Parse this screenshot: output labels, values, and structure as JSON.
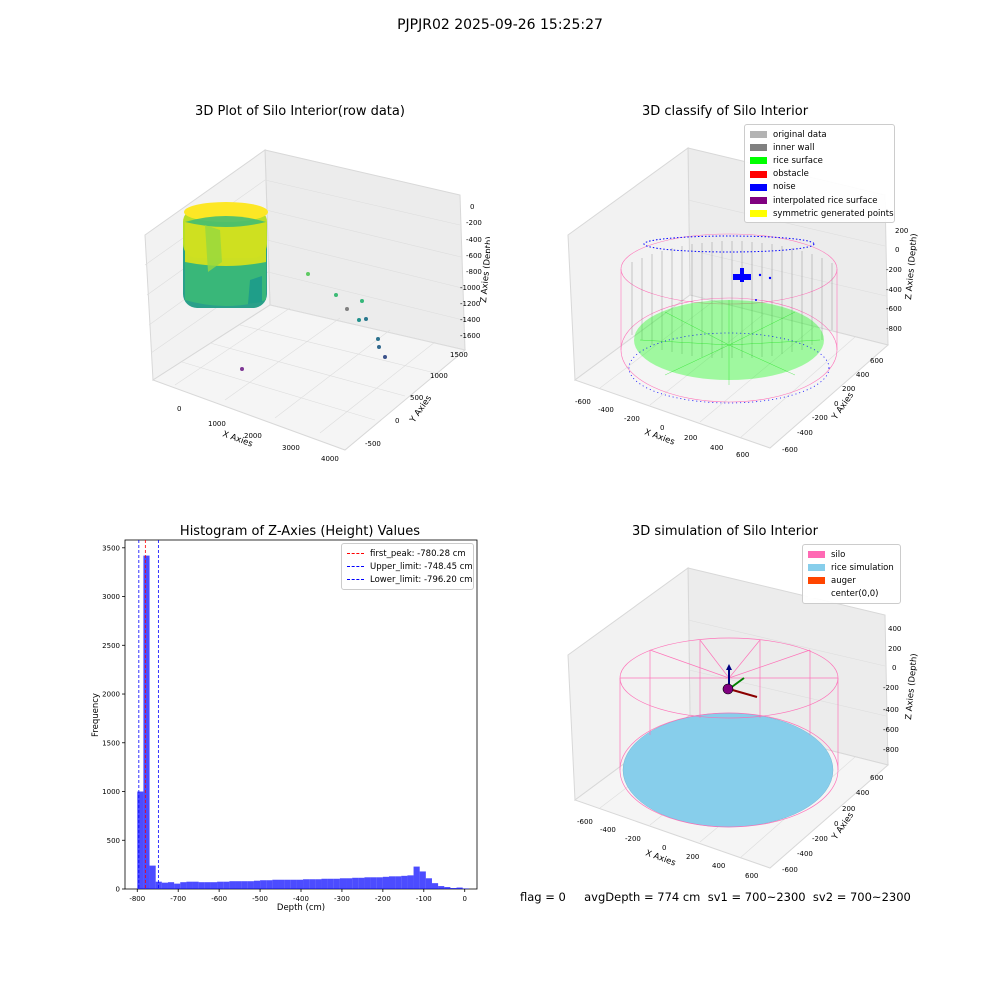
{
  "suptitle": "PJPJR02 2025-09-26 15:25:27",
  "panels": {
    "raw": {
      "title": "3D Plot of Silo Interior(row data)",
      "xlabel": "X Axies",
      "ylabel": "Y Axies",
      "zlabel": "Z Axies (Depth)",
      "xticks": [
        "0",
        "1000",
        "2000",
        "3000",
        "4000"
      ],
      "yticks": [
        "1500",
        "1000",
        "500",
        "0",
        "-500"
      ],
      "zticks": [
        "0",
        "-200",
        "-400",
        "-600",
        "-800",
        "-1000",
        "-1200",
        "-1400",
        "-1600"
      ]
    },
    "classify": {
      "title": "3D classify of Silo Interior",
      "xlabel": "X Axies",
      "ylabel": "Y Axies",
      "zlabel": "Z Axies (Depth)",
      "xticks": [
        "-600",
        "-400",
        "-200",
        "0",
        "200",
        "400",
        "600"
      ],
      "yticks": [
        "600",
        "400",
        "200",
        "0",
        "-200",
        "-400",
        "-600"
      ],
      "zticks": [
        "200",
        "0",
        "-200",
        "-400",
        "-600",
        "-800"
      ],
      "legend": [
        {
          "label": "original data",
          "color": "#b3b3b3"
        },
        {
          "label": "inner wall",
          "color": "#808080"
        },
        {
          "label": "rice surface",
          "color": "#00ff00"
        },
        {
          "label": "obstacle",
          "color": "#ff0000"
        },
        {
          "label": "noise",
          "color": "#0000ff"
        },
        {
          "label": "interpolated rice surface",
          "color": "#800080"
        },
        {
          "label": "symmetric generated points",
          "color": "#ffff00"
        }
      ]
    },
    "simulation": {
      "title": "3D simulation of Silo Interior",
      "xlabel": "X Axies",
      "ylabel": "Y Axies",
      "zlabel": "Z Axies (Depth)",
      "xticks": [
        "-600",
        "-400",
        "-200",
        "0",
        "200",
        "400",
        "600"
      ],
      "yticks": [
        "600",
        "400",
        "200",
        "0",
        "-200",
        "-400",
        "-600"
      ],
      "zticks": [
        "400",
        "200",
        "0",
        "-200",
        "-400",
        "-600",
        "-800"
      ],
      "legend": [
        {
          "label": "silo",
          "color": "#ff69b4"
        },
        {
          "label": "rice simulation",
          "color": "#87ceeb"
        },
        {
          "label": "auger",
          "color": "#ff4500"
        },
        {
          "label": "center(0,0)",
          "color": "#ffffff"
        }
      ]
    }
  },
  "chart_data": {
    "type": "bar",
    "title": "Histogram of Z-Axies (Height) Values",
    "xlabel": "Depth (cm)",
    "ylabel": "Frequency",
    "xlim": [
      -830,
      30
    ],
    "ylim": [
      0,
      3580
    ],
    "xticks": [
      -800,
      -700,
      -600,
      -500,
      -400,
      -300,
      -200,
      -100,
      0
    ],
    "yticks": [
      0,
      500,
      1000,
      1500,
      2000,
      2500,
      3000,
      3500
    ],
    "bin_width": 15,
    "bar_color": "#0000ff",
    "series": [
      {
        "bins_start": [
          -800,
          -785,
          -770,
          -755,
          -740,
          -725,
          -710,
          -695,
          -680,
          -665,
          -650,
          -635,
          -620,
          -605,
          -590,
          -575,
          -560,
          -545,
          -530,
          -515,
          -500,
          -485,
          -470,
          -455,
          -440,
          -425,
          -410,
          -395,
          -380,
          -365,
          -350,
          -335,
          -320,
          -305,
          -290,
          -275,
          -260,
          -245,
          -230,
          -215,
          -200,
          -185,
          -170,
          -155,
          -140,
          -125,
          -110,
          -95,
          -80,
          -65,
          -50,
          -35,
          -20,
          -5
        ],
        "values": [
          1000,
          3420,
          240,
          75,
          65,
          70,
          55,
          70,
          75,
          75,
          70,
          70,
          70,
          75,
          75,
          80,
          80,
          80,
          80,
          85,
          90,
          90,
          95,
          95,
          95,
          95,
          95,
          100,
          100,
          100,
          105,
          105,
          105,
          110,
          110,
          115,
          115,
          120,
          120,
          120,
          125,
          130,
          130,
          135,
          140,
          230,
          180,
          110,
          60,
          30,
          20,
          10,
          15,
          5
        ]
      }
    ],
    "vlines": [
      {
        "label": "first_peak: -780.28 cm",
        "value": -780.28,
        "color": "#ff0000"
      },
      {
        "label": "Upper_limit: -748.45 cm",
        "value": -748.45,
        "color": "#0000ff"
      },
      {
        "label": "Lower_limit: -796.20 cm",
        "value": -796.2,
        "color": "#0000ff"
      }
    ]
  },
  "status_line": "flag = 0     avgDepth = 774 cm  sv1 = 700~2300  sv2 = 700~2300"
}
